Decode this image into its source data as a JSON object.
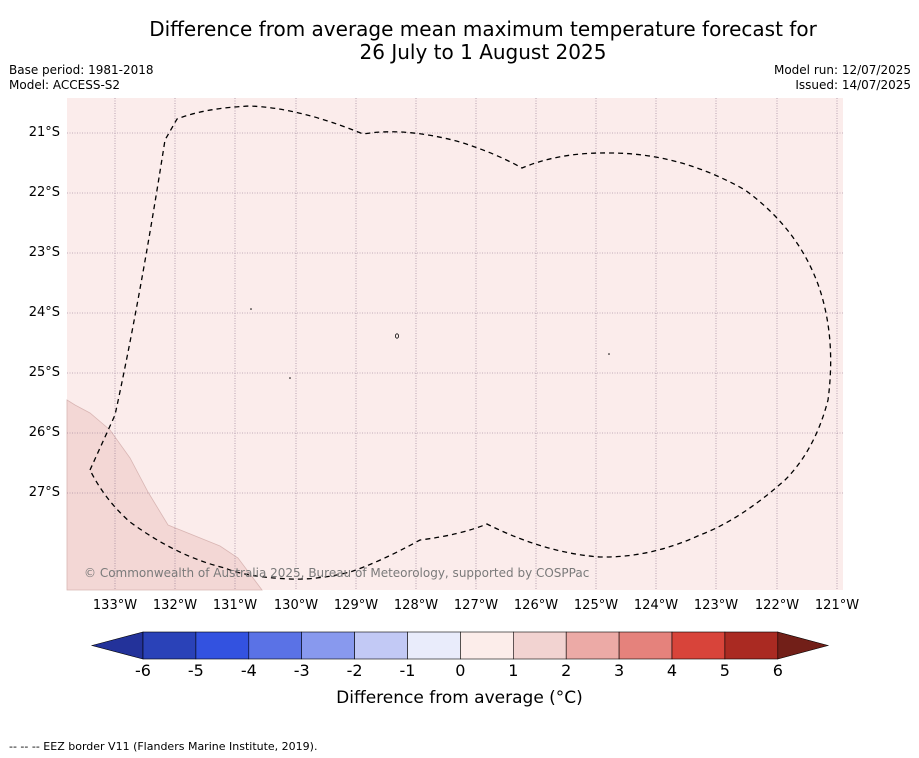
{
  "map": {
    "title_line1": "Difference from average mean maximum temperature forecast for",
    "title_line2": "26 July to 1 August 2025",
    "base_period": "Base period: 1981-2018",
    "model": "Model: ACCESS-S2",
    "model_run": "Model run: 12/07/2025",
    "issued": "Issued: 14/07/2025",
    "latitudes": [
      "21°S",
      "22°S",
      "23°S",
      "24°S",
      "25°S",
      "26°S",
      "27°S"
    ],
    "longitudes": [
      "133°W",
      "132°W",
      "131°W",
      "130°W",
      "129°W",
      "128°W",
      "127°W",
      "126°W",
      "125°W",
      "124°W",
      "123°W",
      "122°W",
      "121°W"
    ],
    "copyright": "© Commonwealth of Australia 2025, Bureau of Meteorology, supported by COSPPac",
    "footer_note": "--  --  -- EEZ border V11 (Flanders Marine Institute, 2019).",
    "colors": {
      "ocean_fill": "#fbeceb",
      "anomaly_1_2": "#f3d7d5",
      "eez_border": "#000000",
      "grid": "#8a6f8a"
    }
  },
  "colorbar": {
    "title": "Difference from average (°C)",
    "ticks": [
      "-6",
      "-5",
      "-4",
      "-3",
      "-2",
      "-1",
      "0",
      "1",
      "2",
      "3",
      "4",
      "5",
      "6"
    ],
    "colors": [
      "#23329a",
      "#2a42b8",
      "#3352e0",
      "#5a72e6",
      "#8899ee",
      "#c2c9f5",
      "#e9ecfb",
      "#fcedea",
      "#f2d3d1",
      "#ecaaa6",
      "#e5827c",
      "#d8443a",
      "#aa2a22",
      "#721f18"
    ]
  }
}
